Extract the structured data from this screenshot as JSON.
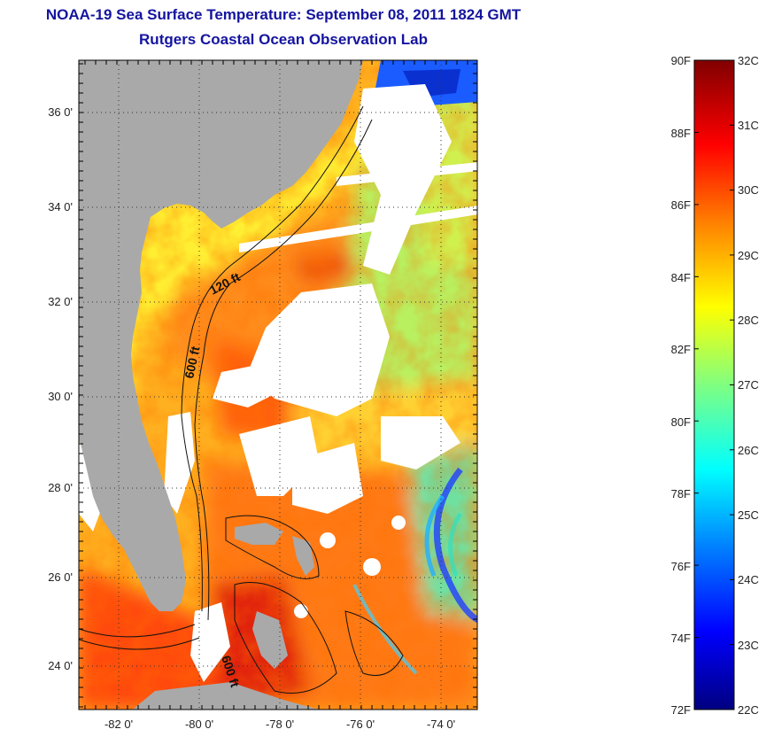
{
  "title": "NOAA-19 Sea Surface Temperature:  September 08, 2011 1824 GMT",
  "subtitle": "Rutgers Coastal Ocean Observation Lab",
  "map": {
    "lon_range": [
      -83,
      -73
    ],
    "lat_range": [
      23,
      37
    ],
    "lon_ticks": [
      {
        "value": -82,
        "label": "-82 0'"
      },
      {
        "value": -80,
        "label": "-80 0'"
      },
      {
        "value": -78,
        "label": "-78 0'"
      },
      {
        "value": -76,
        "label": "-76 0'"
      },
      {
        "value": -74,
        "label": "-74 0'"
      }
    ],
    "lat_ticks": [
      {
        "value": 36,
        "label": "36 0'"
      },
      {
        "value": 34,
        "label": "34 0'"
      },
      {
        "value": 32,
        "label": "32 0'"
      },
      {
        "value": 30,
        "label": "30 0'"
      },
      {
        "value": 28,
        "label": "28 0'"
      },
      {
        "value": 26,
        "label": "26 0'"
      },
      {
        "value": 24,
        "label": "24 0'"
      }
    ],
    "grid": "dotted",
    "contour_labels": [
      "120 ft",
      "600 ft",
      "600 ft"
    ],
    "land_color": "#a9a9a9",
    "no_data_color": "#ffffff"
  },
  "colorbar": {
    "fahrenheit_labels": [
      "90F",
      "88F",
      "86F",
      "84F",
      "82F",
      "80F",
      "78F",
      "76F",
      "74F",
      "72F"
    ],
    "celsius_labels": [
      "32C",
      "31C",
      "30C",
      "29C",
      "28C",
      "27C",
      "26C",
      "25C",
      "24C",
      "23C",
      "22C"
    ],
    "range_c": [
      22,
      32
    ],
    "colors": [
      "#000080",
      "#0000ff",
      "#0080ff",
      "#00ffff",
      "#80ff80",
      "#ffff00",
      "#ff8000",
      "#ff0000",
      "#800000"
    ]
  }
}
